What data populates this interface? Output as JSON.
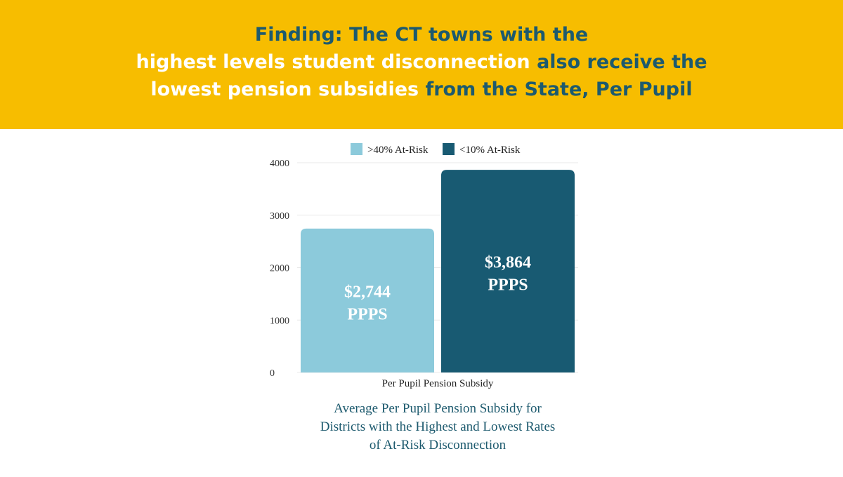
{
  "header": {
    "line1": "Finding: The CT towns with the",
    "line2_highlight": "highest levels student disconnection",
    "line2_rest": "also receive the",
    "line3_highlight": "lowest pension subsidies",
    "line3_rest": "from the State, Per Pupil"
  },
  "colors": {
    "banner": "#f7bd00",
    "headline_dark": "#1d5a6e",
    "series_high_risk": "#8ccadb",
    "series_low_risk": "#185a72"
  },
  "chart_data": {
    "type": "bar",
    "title": "",
    "xlabel": "Per Pupil Pension Subsidy",
    "ylabel": "",
    "ylim": [
      0,
      4000
    ],
    "yticks": [
      0,
      1000,
      2000,
      3000,
      4000
    ],
    "grid": true,
    "legend_position": "top",
    "categories": [
      "Per Pupil Pension Subsidy"
    ],
    "series": [
      {
        "name": ">40% At-Risk",
        "values": [
          2744
        ],
        "color": "#8ccadb",
        "label_amount": "$2,744",
        "label_unit": "PPPS"
      },
      {
        "name": "<10% At-Risk",
        "values": [
          3864
        ],
        "color": "#185a72",
        "label_amount": "$3,864",
        "label_unit": "PPPS"
      }
    ]
  },
  "caption": {
    "line1": "Average Per Pupil Pension Subsidy for",
    "line2": "Districts with the Highest and Lowest Rates",
    "line3": "of At-Risk Disconnection"
  }
}
